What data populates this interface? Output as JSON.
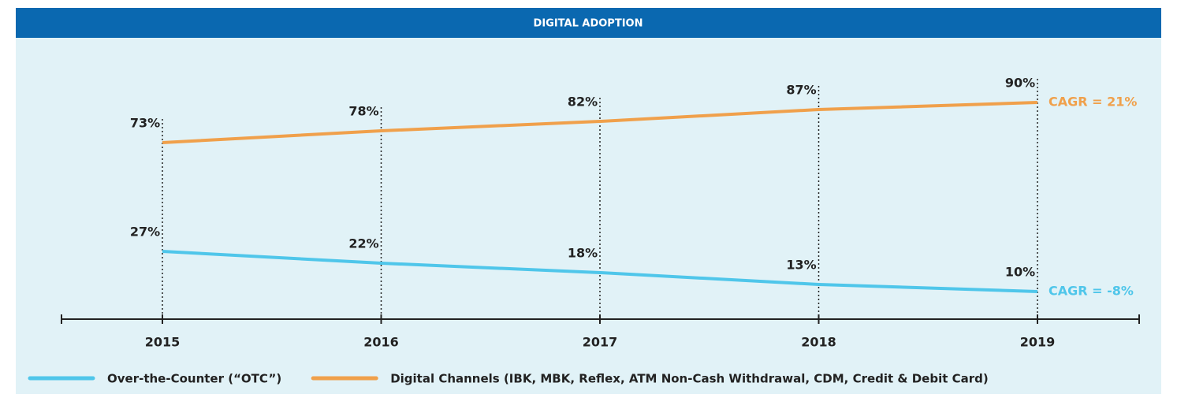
{
  "chart_data": {
    "type": "line",
    "title": "DIGITAL ADOPTION",
    "categories": [
      "2015",
      "2016",
      "2017",
      "2018",
      "2019"
    ],
    "series": [
      {
        "name": "Over-the-Counter (“OTC”)",
        "color": "#4fc6ea",
        "values": [
          27,
          22,
          18,
          13,
          10
        ],
        "value_labels": [
          "27%",
          "22%",
          "18%",
          "13%",
          "10%"
        ],
        "annotation": "CAGR = -8%"
      },
      {
        "name": "Digital Channels (IBK, MBK, Reflex, ATM Non-Cash Withdrawal, CDM, Credit & Debit Card)",
        "color": "#f0a04b",
        "values": [
          73,
          78,
          82,
          87,
          90
        ],
        "value_labels": [
          "73%",
          "78%",
          "82%",
          "87%",
          "90%"
        ],
        "annotation": "CAGR = 21%"
      }
    ],
    "ylim": [
      0,
      100
    ]
  }
}
